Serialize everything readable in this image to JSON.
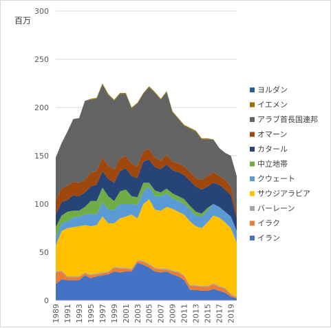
{
  "chart_data": {
    "type": "area",
    "title": "",
    "ylabel": "百万",
    "xlabel": "",
    "ylim": [
      0,
      300
    ],
    "yticks": [
      0,
      50,
      100,
      150,
      200,
      250,
      300
    ],
    "grid": true,
    "legend_position": "right",
    "x": [
      1989,
      1990,
      1991,
      1992,
      1993,
      1994,
      1995,
      1996,
      1997,
      1998,
      1999,
      2000,
      2001,
      2002,
      2003,
      2004,
      2005,
      2006,
      2007,
      2008,
      2009,
      2010,
      2011,
      2012,
      2013,
      2014,
      2015,
      2016,
      2017,
      2018,
      2019,
      2020
    ],
    "xticklabels": [
      "1989",
      "1991",
      "1993",
      "1995",
      "1997",
      "1999",
      "2001",
      "2003",
      "2005",
      "2007",
      "2009",
      "2011",
      "2013",
      "2015",
      "2017",
      "2019"
    ],
    "series": [
      {
        "name": "イラン",
        "color": "#4472C4",
        "values": [
          17,
          22,
          21,
          21,
          21,
          26,
          23,
          25,
          26,
          27,
          30,
          29,
          30,
          30,
          39,
          37,
          34,
          30,
          29,
          30,
          27,
          25,
          21,
          11,
          11,
          10,
          10,
          12,
          10,
          8,
          4,
          2
        ]
      },
      {
        "name": "イラク",
        "color": "#ED7D31",
        "values": [
          12,
          8,
          3,
          3,
          3,
          2,
          3,
          2,
          2,
          2,
          4,
          4,
          3,
          2,
          2,
          3,
          3,
          3,
          3,
          2,
          3,
          4,
          4,
          4,
          4,
          4,
          4,
          5,
          4,
          4,
          2,
          1
        ]
      },
      {
        "name": "バーレーン",
        "color": "#A5A5A5",
        "values": [
          1,
          1,
          1,
          1,
          1,
          1,
          1,
          1,
          1,
          1,
          1,
          1,
          1,
          1,
          1,
          1,
          1,
          1,
          1,
          1,
          1,
          1,
          1,
          1,
          1,
          1,
          1,
          1,
          1,
          1,
          1,
          1
        ]
      },
      {
        "name": "サウジアラビア",
        "color": "#FFC000",
        "values": [
          27,
          41,
          50,
          51,
          52,
          49,
          50,
          50,
          58,
          50,
          45,
          51,
          53,
          56,
          43,
          59,
          67,
          60,
          60,
          64,
          64,
          62,
          63,
          66,
          61,
          60,
          66,
          70,
          71,
          68,
          68,
          56
        ]
      },
      {
        "name": "クウェート",
        "color": "#5B9BD5",
        "values": [
          8,
          8,
          7,
          10,
          10,
          11,
          13,
          11,
          15,
          14,
          14,
          15,
          13,
          11,
          14,
          13,
          13,
          14,
          15,
          14,
          11,
          11,
          11,
          12,
          11,
          12,
          12,
          12,
          11,
          11,
          12,
          12
        ]
      },
      {
        "name": "中立地帯",
        "color": "#70AD47",
        "values": [
          11,
          8,
          10,
          7,
          6,
          8,
          13,
          14,
          15,
          14,
          9,
          13,
          15,
          8,
          8,
          9,
          4,
          6,
          4,
          5,
          5,
          5,
          5,
          4,
          4,
          3,
          3,
          0,
          0,
          0,
          0,
          0
        ]
      },
      {
        "name": "カタール",
        "color": "#264478",
        "values": [
          13,
          14,
          12,
          16,
          15,
          15,
          15,
          17,
          17,
          18,
          19,
          21,
          22,
          21,
          20,
          22,
          24,
          24,
          24,
          25,
          24,
          25,
          25,
          26,
          26,
          25,
          22,
          22,
          23,
          23,
          22,
          13
        ]
      },
      {
        "name": "オマーン",
        "color": "#9E480E",
        "values": [
          15,
          14,
          15,
          14,
          14,
          13,
          15,
          14,
          14,
          14,
          14,
          13,
          13,
          13,
          12,
          11,
          11,
          10,
          9,
          10,
          9,
          9,
          9,
          9,
          9,
          10,
          11,
          11,
          9,
          10,
          9,
          6
        ]
      },
      {
        "name": "アラブ首長国連邦",
        "color": "#636363",
        "values": [
          44,
          47,
          56,
          65,
          67,
          82,
          75,
          75,
          76,
          73,
          71,
          67,
          64,
          57,
          65,
          59,
          64,
          67,
          63,
          65,
          51,
          46,
          42,
          45,
          48,
          42,
          38,
          34,
          29,
          28,
          32,
          38
        ]
      },
      {
        "name": "イエメン",
        "color": "#997300",
        "values": [
          0,
          0,
          0,
          0,
          0,
          0,
          1,
          1,
          1,
          1,
          1,
          1,
          1,
          1,
          1,
          1,
          1,
          1,
          1,
          1,
          1,
          1,
          1,
          1,
          1,
          1,
          1,
          0,
          0,
          0,
          0,
          0
        ]
      },
      {
        "name": "ヨルダン",
        "color": "#255E91",
        "values": [
          0,
          0,
          0,
          0,
          0,
          0,
          0,
          0,
          0,
          0,
          0,
          0,
          0,
          0,
          0,
          0,
          0,
          0,
          0,
          0,
          0,
          0,
          0,
          0,
          0,
          0,
          0,
          0,
          0,
          0,
          0,
          0
        ]
      }
    ]
  }
}
